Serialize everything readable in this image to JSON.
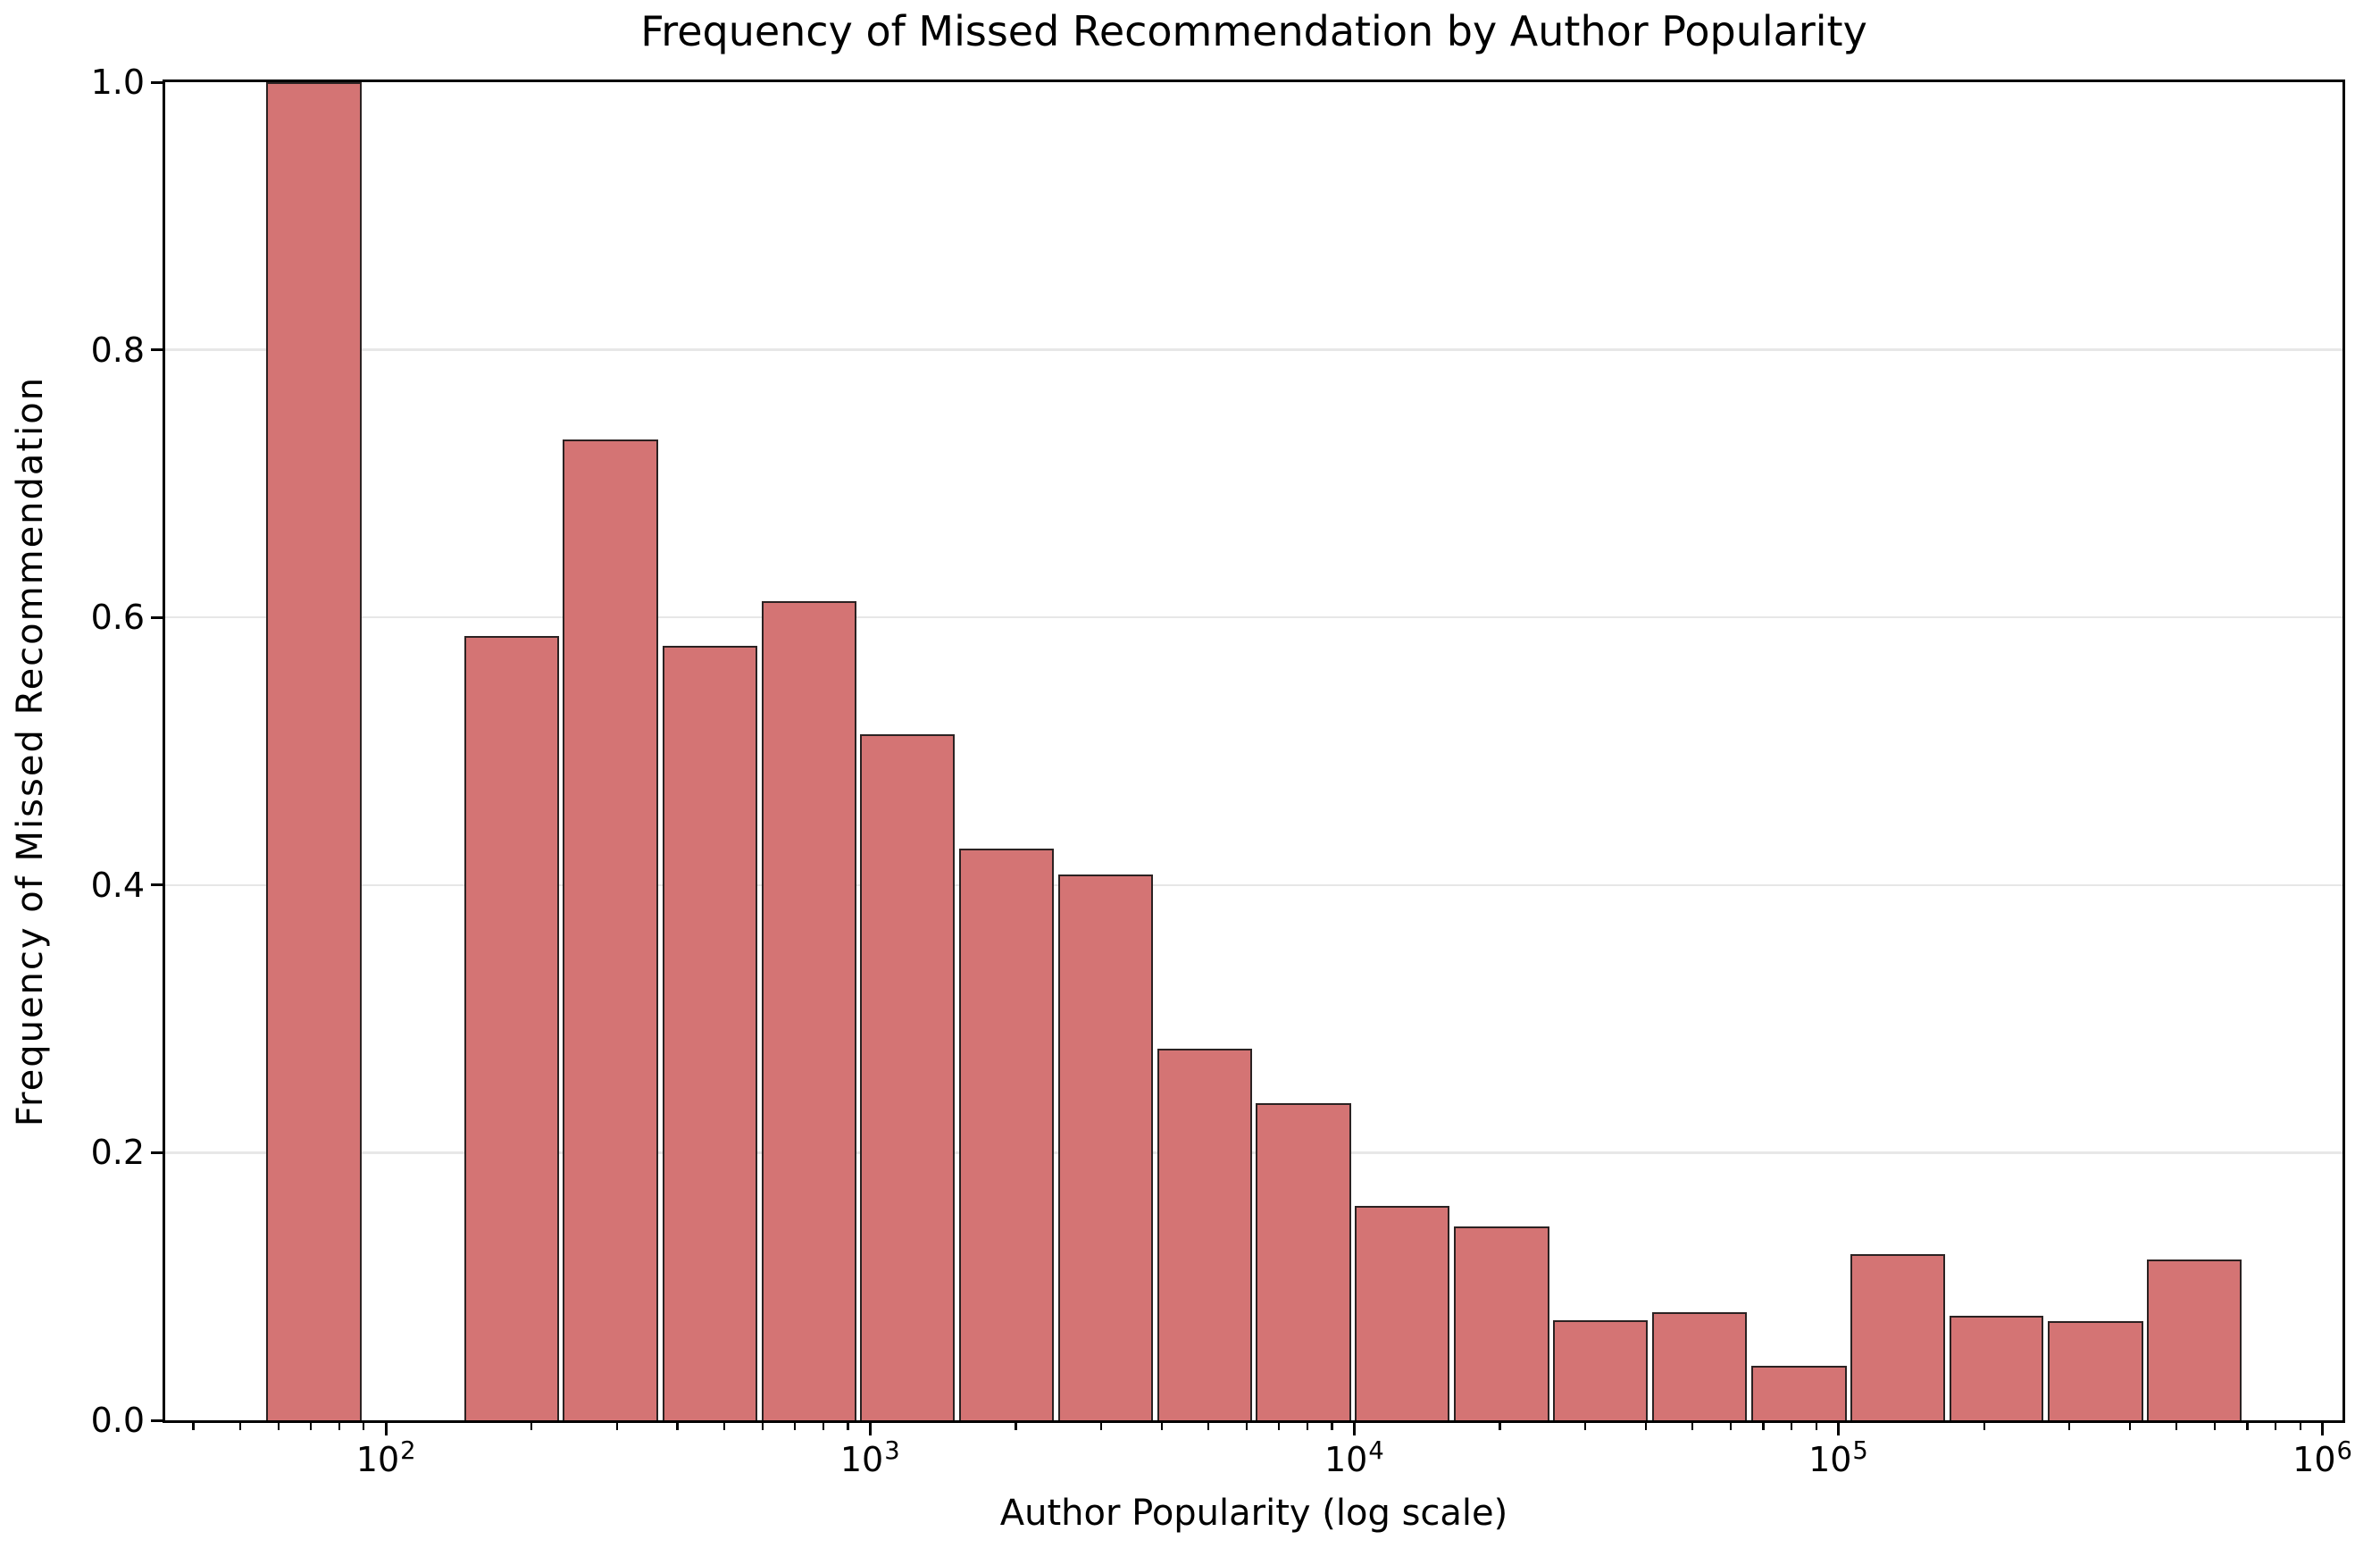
{
  "figure": {
    "title": "Frequency of Missed Recommendation by Author Popularity",
    "xlabel": "Author Popularity (log scale)",
    "ylabel": "Frequency of Missed Recommendation"
  },
  "chart_data": {
    "type": "bar",
    "subtype": "histogram-log-x",
    "title": "Frequency of Missed Recommendation by Author Popularity",
    "xlabel": "Author Popularity (log scale)",
    "ylabel": "Frequency of Missed Recommendation",
    "x_scale": "log",
    "grid": "horizontal",
    "legend": "none",
    "xlim": [
      35,
      1100000
    ],
    "ylim": [
      0.0,
      1.0
    ],
    "bin_edges": [
      56,
      90,
      144,
      230,
      369,
      591,
      945,
      1510,
      2420,
      3880,
      6210,
      9950,
      15900,
      25500,
      40800,
      65400,
      105000,
      168000,
      268000,
      430000,
      688000
    ],
    "frequencies": [
      1.0,
      0.0,
      0.586,
      0.733,
      0.579,
      0.612,
      0.513,
      0.427,
      0.408,
      0.278,
      0.237,
      0.16,
      0.145,
      0.075,
      0.081,
      0.041,
      0.124,
      0.078,
      0.074,
      0.12
    ],
    "bar_color": "#d47474",
    "bar_edge_color": "#2b2222",
    "grid_color": "#e7e7e7",
    "axis_color": "#000000",
    "yticks": [
      "0.0",
      "0.2",
      "0.4",
      "0.6",
      "0.8",
      "1.0"
    ],
    "xticks": [
      {
        "base": "10",
        "exp": "2"
      },
      {
        "base": "10",
        "exp": "3"
      },
      {
        "base": "10",
        "exp": "4"
      },
      {
        "base": "10",
        "exp": "5"
      },
      {
        "base": "10",
        "exp": "6"
      }
    ]
  }
}
